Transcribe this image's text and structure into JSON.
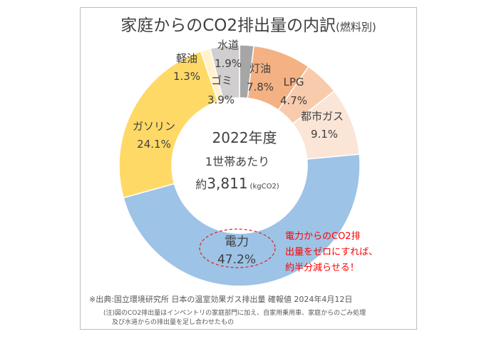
{
  "title": "家庭からのCO2排出量の内訳",
  "subtitle": "(燃料別)",
  "center": {
    "year": "2022年度",
    "line1": "1世帯あたり",
    "prefix": "約",
    "value": "3,811",
    "unit": "(kgCO2)"
  },
  "callout": {
    "line1": "電力からのCO2排",
    "line2": "出量をゼロにすれば、",
    "line3": "約半分減らせる！",
    "color": "#ff0000"
  },
  "source_text": "※出典:国立環境研究所 日本の温室効果ガス排出量 確報値 2024年4月12日",
  "footnote_line1": "(注)図のCO2排出量はインベントリの家庭部門に加え、自家用乗用車、家庭からのごみ処理",
  "footnote_line2": "及び水道からの排出量を足し合わせたもの",
  "chart_data": {
    "type": "pie",
    "title": "家庭からのCO2排出量の内訳(燃料別)",
    "categories": [
      "水道",
      "灯油",
      "LPG",
      "都市ガス",
      "電力",
      "ガソリン",
      "軽油",
      "ゴミ"
    ],
    "values": [
      1.9,
      7.8,
      4.7,
      9.1,
      47.2,
      24.1,
      1.3,
      3.9
    ],
    "value_labels": [
      "1.9%",
      "7.8%",
      "4.7%",
      "9.1%",
      "47.2%",
      "24.1%",
      "1.3%",
      "3.9%"
    ],
    "colors": [
      "#a6a6a6",
      "#f4b183",
      "#f8cbad",
      "#fbe5d6",
      "#9dc3e6",
      "#ffd966",
      "#fff2cc",
      "#d0cece"
    ],
    "hole": "donut",
    "start": "top, clockwise"
  }
}
